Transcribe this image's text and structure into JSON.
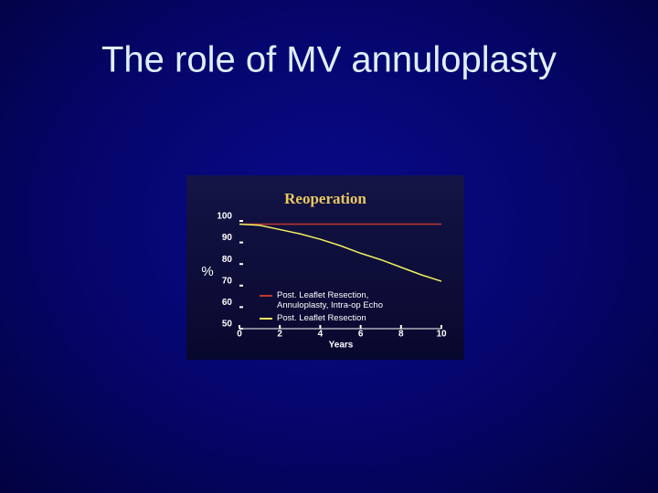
{
  "title": "The role of MV annuloplasty",
  "chart_data": {
    "type": "line",
    "title": "Reoperation",
    "x": [
      0,
      1,
      2,
      3,
      4,
      5,
      6,
      7,
      8,
      9,
      10
    ],
    "series": [
      {
        "name": "Post. Leaflet Resection, Annuloplasty, Intra-op Echo",
        "color": "#c0392b",
        "values": [
          98.5,
          98.5,
          98.5,
          98.5,
          98.5,
          98.5,
          98.5,
          98.5,
          98.5,
          98.5,
          98.5
        ]
      },
      {
        "name": "Post. Leaflet Resection",
        "color": "#f0f060",
        "values": [
          98.5,
          98,
          96,
          94,
          91.5,
          88.5,
          85,
          82,
          78.5,
          75,
          72
        ]
      }
    ],
    "xlim": [
      0,
      10
    ],
    "xticks": [
      0,
      2,
      4,
      6,
      8,
      10
    ],
    "ylim": [
      50,
      100
    ],
    "yticks": [
      50,
      60,
      70,
      80,
      90,
      100
    ],
    "x_label": "Years",
    "y_label": "%",
    "grid": false,
    "legend": "lower-left"
  }
}
